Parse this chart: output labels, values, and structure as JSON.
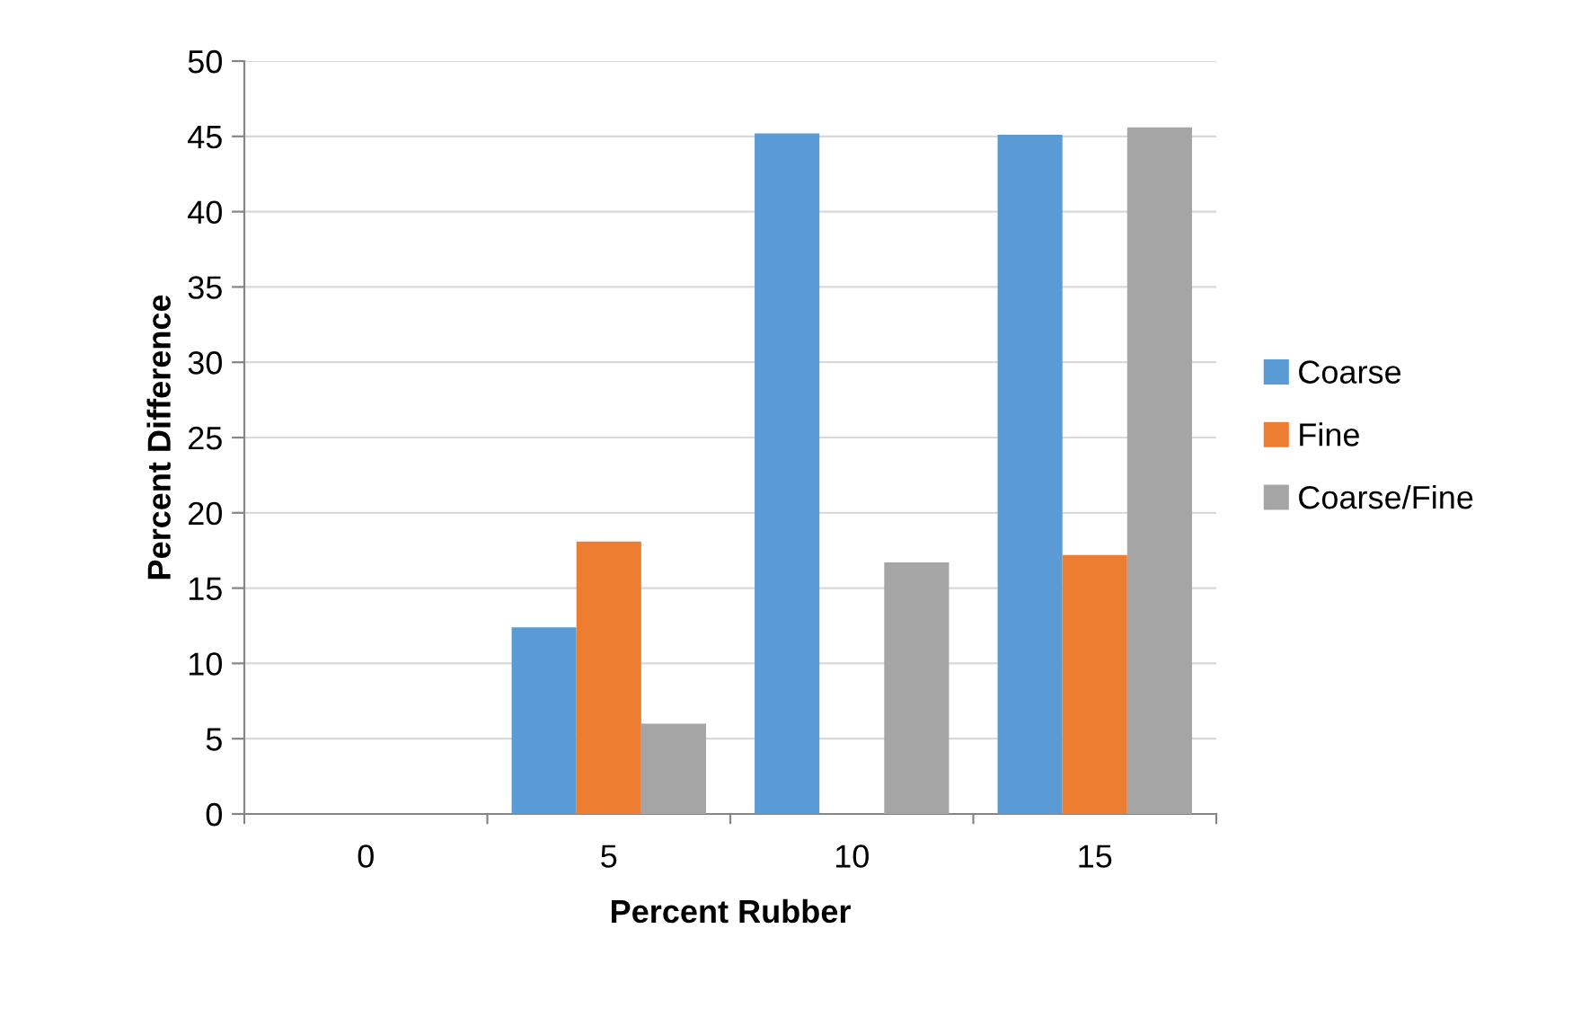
{
  "chart_data": {
    "type": "bar",
    "xlabel": "Percent Rubber",
    "ylabel": "Percent Difference",
    "categories": [
      "0",
      "5",
      "10",
      "15"
    ],
    "series": [
      {
        "name": "Coarse",
        "color": "#5b9bd5",
        "values": [
          0,
          12.4,
          45.2,
          45.1
        ]
      },
      {
        "name": "Fine",
        "color": "#ed7d31",
        "values": [
          0,
          18.1,
          0,
          17.2
        ]
      },
      {
        "name": "Coarse/Fine",
        "color": "#a5a5a5",
        "values": [
          0,
          6.0,
          16.7,
          45.6
        ]
      }
    ],
    "ylim": [
      0,
      50
    ],
    "yticks": [
      0,
      5,
      10,
      15,
      20,
      25,
      30,
      35,
      40,
      45,
      50
    ],
    "grid": "y",
    "legend": "right"
  }
}
